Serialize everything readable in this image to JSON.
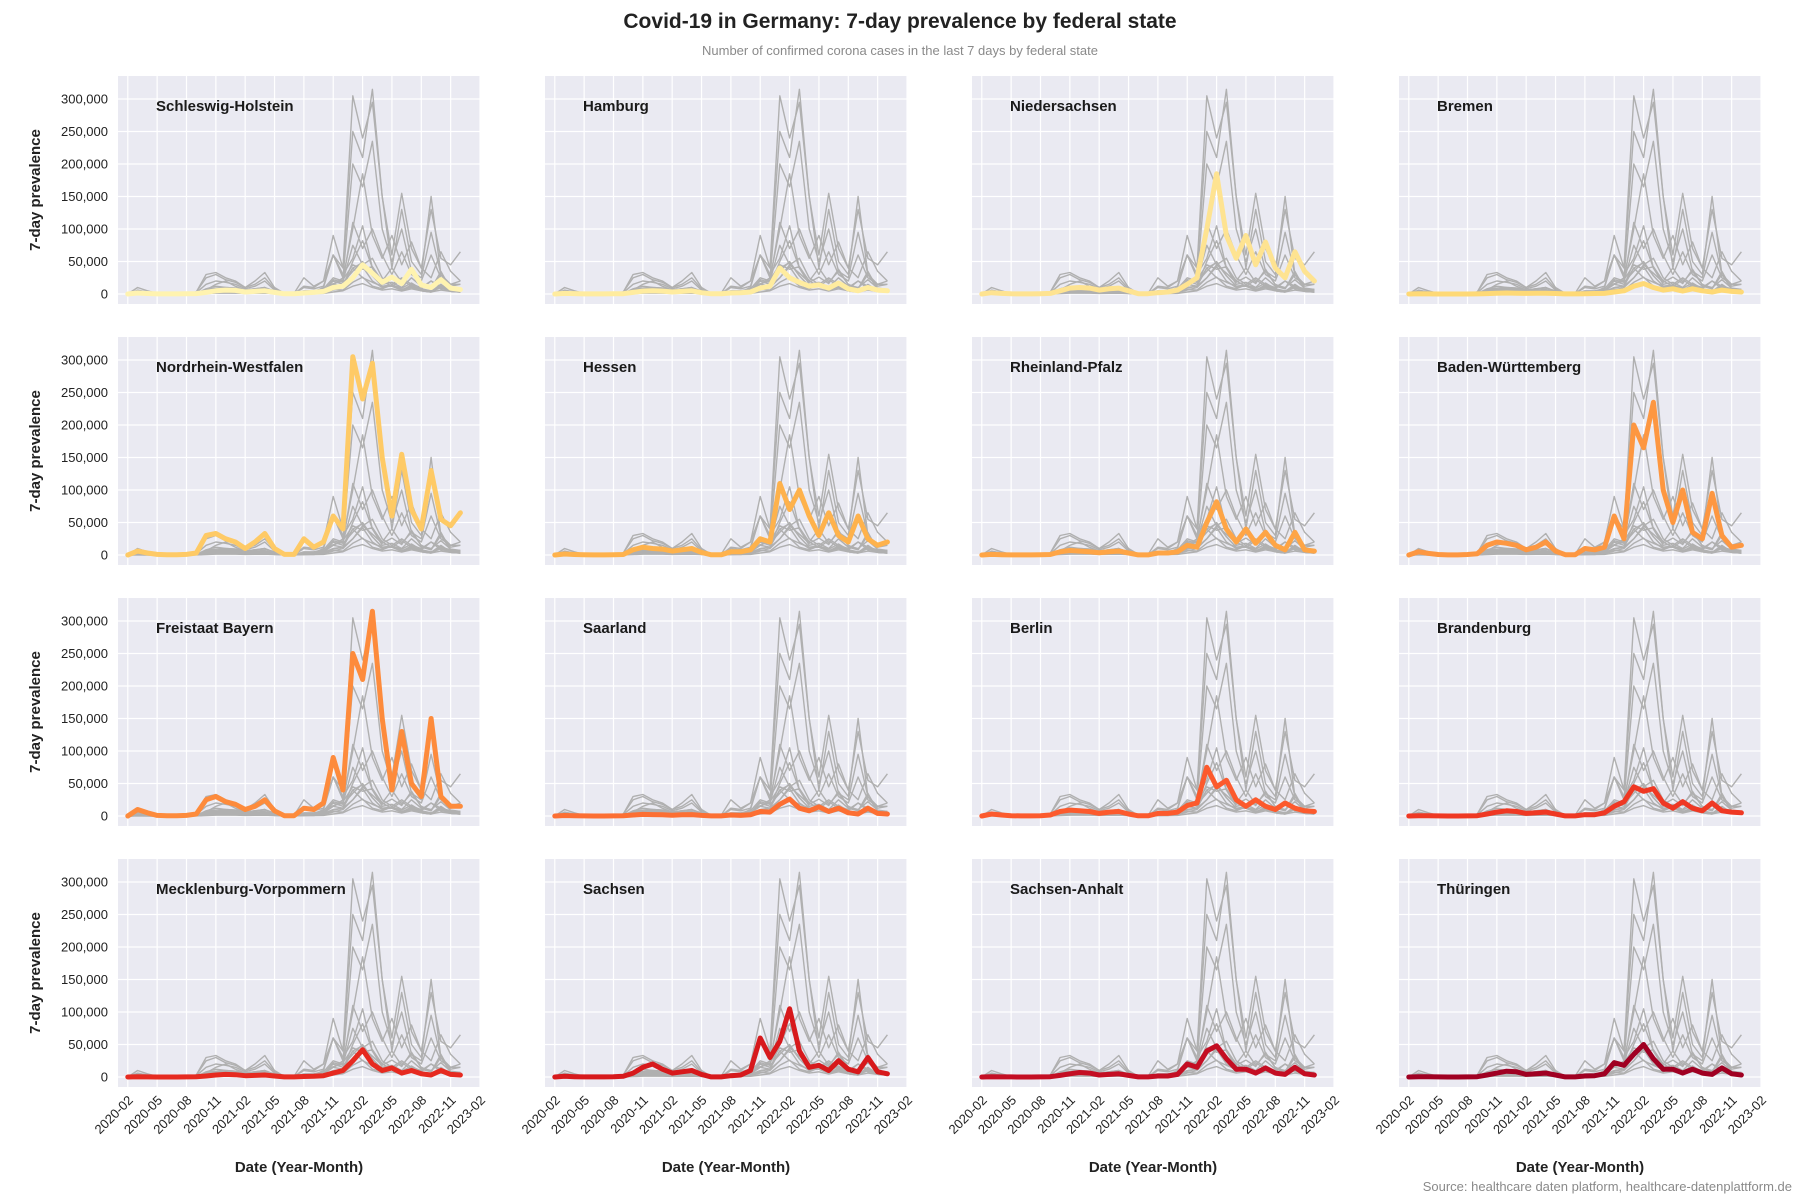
{
  "title": "Covid-19 in Germany: 7-day prevalence by federal state",
  "subtitle": "Number of confirmed corona cases in the last 7 days by federal state",
  "source": "Source: healthcare daten platform, healthcare-datenplattform.de",
  "chart_data": {
    "type": "line",
    "layout": "small-multiples 4x4",
    "xlabel": "Date (Year-Month)",
    "ylabel": "7-day prevalence",
    "xlim": [
      "2020-01",
      "2023-02"
    ],
    "ylim": [
      0,
      320000
    ],
    "grid": true,
    "x_ticks": [
      "2020-02",
      "2020-05",
      "2020-08",
      "2020-11",
      "2021-02",
      "2021-05",
      "2021-08",
      "2021-11",
      "2022-02",
      "2022-05",
      "2022-08",
      "2022-11",
      "2023-02"
    ],
    "y_ticks": [
      0,
      50000,
      100000,
      150000,
      200000,
      250000,
      300000
    ],
    "y_tick_labels": [
      "0",
      "50,000",
      "100,000",
      "150,000",
      "200,000",
      "250,000",
      "300,000"
    ],
    "x": [
      "2020-02",
      "2020-03",
      "2020-04",
      "2020-05",
      "2020-06",
      "2020-07",
      "2020-08",
      "2020-09",
      "2020-10",
      "2020-11",
      "2020-12",
      "2021-01",
      "2021-02",
      "2021-03",
      "2021-04",
      "2021-05",
      "2021-06",
      "2021-07",
      "2021-08",
      "2021-09",
      "2021-10",
      "2021-11",
      "2021-12",
      "2022-01",
      "2022-02",
      "2022-03",
      "2022-04",
      "2022-05",
      "2022-06",
      "2022-07",
      "2022-08",
      "2022-09",
      "2022-10",
      "2022-11",
      "2022-12"
    ],
    "series": [
      {
        "name": "Schleswig-Holstein",
        "color": "#fff3b0",
        "values": [
          0,
          1500,
          800,
          200,
          100,
          100,
          300,
          600,
          2500,
          5000,
          6000,
          5500,
          3000,
          4000,
          5000,
          2500,
          300,
          300,
          1500,
          2500,
          4000,
          10000,
          12000,
          25000,
          45000,
          32000,
          18000,
          26000,
          16000,
          38000,
          14000,
          10000,
          22000,
          9000,
          7000
        ]
      },
      {
        "name": "Hamburg",
        "color": "#ffec9f",
        "values": [
          0,
          1000,
          600,
          200,
          100,
          100,
          300,
          500,
          2500,
          4500,
          5000,
          4500,
          3000,
          4000,
          5000,
          2000,
          300,
          300,
          1500,
          2000,
          3000,
          9000,
          12000,
          40000,
          25000,
          18000,
          12000,
          14000,
          9000,
          17000,
          8000,
          5000,
          10000,
          6000,
          5000
        ]
      },
      {
        "name": "Niedersachsen",
        "color": "#fee391",
        "values": [
          0,
          2000,
          1000,
          300,
          100,
          100,
          400,
          1000,
          5000,
          9000,
          10000,
          9000,
          6000,
          8000,
          9000,
          5000,
          500,
          500,
          2000,
          3000,
          6000,
          15000,
          25000,
          100000,
          185000,
          90000,
          55000,
          90000,
          45000,
          80000,
          40000,
          25000,
          65000,
          35000,
          20000
        ]
      },
      {
        "name": "Bremen",
        "color": "#fed976",
        "values": [
          0,
          300,
          200,
          50,
          20,
          20,
          50,
          100,
          600,
          1200,
          1500,
          1300,
          900,
          1100,
          1200,
          700,
          100,
          100,
          400,
          700,
          1000,
          3000,
          5000,
          12000,
          16000,
          10000,
          6000,
          8000,
          4500,
          8000,
          5000,
          3000,
          6000,
          4000,
          3000
        ]
      },
      {
        "name": "Nordrhein-Westfalen",
        "color": "#feca66",
        "values": [
          0,
          6000,
          3000,
          1000,
          300,
          300,
          1000,
          3000,
          30000,
          33000,
          25000,
          20000,
          10000,
          20000,
          33000,
          10000,
          1000,
          1000,
          25000,
          12000,
          20000,
          60000,
          40000,
          305000,
          240000,
          295000,
          150000,
          60000,
          155000,
          70000,
          40000,
          130000,
          55000,
          45000,
          65000
        ]
      },
      {
        "name": "Hessen",
        "color": "#feb24c",
        "values": [
          0,
          1500,
          800,
          300,
          100,
          100,
          300,
          800,
          8000,
          12000,
          10000,
          9000,
          6000,
          8000,
          10000,
          4000,
          300,
          300,
          5000,
          5000,
          8000,
          25000,
          20000,
          110000,
          70000,
          100000,
          60000,
          30000,
          65000,
          30000,
          20000,
          60000,
          25000,
          15000,
          20000
        ]
      },
      {
        "name": "Rheinland-Pfalz",
        "color": "#fea546",
        "values": [
          0,
          1000,
          500,
          200,
          100,
          100,
          300,
          700,
          5000,
          7000,
          6000,
          5000,
          3500,
          5000,
          6000,
          3000,
          200,
          200,
          3000,
          3000,
          5000,
          15000,
          12000,
          50000,
          82000,
          40000,
          20000,
          40000,
          18000,
          35000,
          15000,
          8000,
          35000,
          8000,
          6000
        ]
      },
      {
        "name": "Baden-Württemberg",
        "color": "#fd9741",
        "values": [
          0,
          5000,
          2500,
          800,
          200,
          200,
          800,
          2000,
          15000,
          20000,
          18000,
          15000,
          8000,
          12000,
          20000,
          6000,
          500,
          500,
          10000,
          8000,
          12000,
          60000,
          25000,
          200000,
          165000,
          235000,
          100000,
          50000,
          100000,
          35000,
          25000,
          95000,
          30000,
          12000,
          15000
        ]
      },
      {
        "name": "Freistaat Bayern",
        "color": "#fd8b3c",
        "values": [
          0,
          10000,
          5000,
          1000,
          300,
          300,
          1000,
          3000,
          25000,
          30000,
          22000,
          18000,
          10000,
          15000,
          25000,
          8000,
          500,
          500,
          12000,
          10000,
          20000,
          90000,
          40000,
          250000,
          210000,
          315000,
          150000,
          40000,
          130000,
          50000,
          30000,
          150000,
          30000,
          15000,
          15000
        ]
      },
      {
        "name": "Saarland",
        "color": "#fc6f33",
        "values": [
          0,
          700,
          300,
          100,
          50,
          50,
          150,
          300,
          1500,
          2500,
          2200,
          2000,
          1200,
          1800,
          2200,
          1000,
          100,
          100,
          1500,
          1000,
          2000,
          7000,
          6000,
          18000,
          26000,
          12000,
          8000,
          14000,
          7000,
          12000,
          5000,
          3000,
          12000,
          4000,
          3000
        ]
      },
      {
        "name": "Berlin",
        "color": "#fc5a2d",
        "values": [
          0,
          3000,
          1500,
          500,
          200,
          200,
          500,
          1500,
          7000,
          9000,
          8000,
          7000,
          4000,
          6000,
          7000,
          3000,
          300,
          300,
          4000,
          4000,
          6000,
          16000,
          20000,
          75000,
          45000,
          55000,
          25000,
          15000,
          25000,
          15000,
          10000,
          20000,
          12000,
          8000,
          7000
        ]
      },
      {
        "name": "Brandenburg",
        "color": "#ef3823",
        "values": [
          0,
          500,
          300,
          100,
          50,
          50,
          150,
          500,
          3000,
          6000,
          8000,
          7000,
          4000,
          5000,
          6000,
          3000,
          200,
          200,
          2000,
          2000,
          5000,
          15000,
          22000,
          45000,
          38000,
          42000,
          20000,
          12000,
          22000,
          12000,
          8000,
          20000,
          8000,
          6000,
          5000
        ]
      },
      {
        "name": "Mecklenburg-Vorpommern",
        "color": "#e62a20",
        "values": [
          0,
          300,
          200,
          50,
          20,
          20,
          100,
          300,
          1500,
          3000,
          4000,
          3500,
          2000,
          2500,
          3000,
          1500,
          100,
          100,
          800,
          1000,
          2000,
          6000,
          10000,
          25000,
          42000,
          20000,
          10000,
          14000,
          6000,
          10000,
          5000,
          3000,
          10000,
          4000,
          3000
        ]
      },
      {
        "name": "Sachsen",
        "color": "#d7191c",
        "values": [
          0,
          1000,
          500,
          200,
          100,
          100,
          300,
          1000,
          6000,
          15000,
          20000,
          12000,
          6000,
          8000,
          10000,
          4000,
          200,
          200,
          2000,
          3000,
          10000,
          60000,
          30000,
          55000,
          105000,
          40000,
          15000,
          18000,
          10000,
          25000,
          12000,
          8000,
          30000,
          8000,
          5000
        ]
      },
      {
        "name": "Sachsen-Anhalt",
        "color": "#c40e23",
        "values": [
          0,
          400,
          200,
          100,
          50,
          50,
          150,
          400,
          2500,
          5000,
          7000,
          6000,
          3000,
          4000,
          5000,
          2500,
          100,
          100,
          1500,
          1500,
          4000,
          20000,
          15000,
          40000,
          48000,
          28000,
          12000,
          12000,
          6000,
          14000,
          6000,
          4000,
          15000,
          5000,
          3000
        ]
      },
      {
        "name": "Thüringen",
        "color": "#a00022",
        "values": [
          0,
          500,
          300,
          100,
          50,
          50,
          150,
          500,
          3000,
          6000,
          9000,
          8000,
          4000,
          5000,
          6000,
          3000,
          100,
          100,
          1500,
          2000,
          5000,
          22000,
          18000,
          35000,
          50000,
          28000,
          12000,
          12000,
          6000,
          12000,
          6000,
          4000,
          14000,
          5000,
          3000
        ]
      }
    ]
  }
}
